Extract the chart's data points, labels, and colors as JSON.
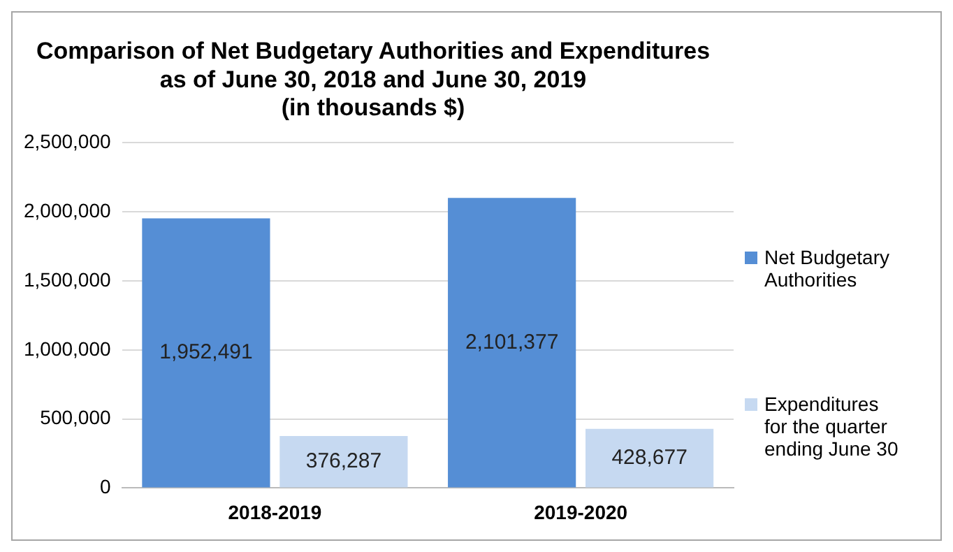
{
  "chart_data": {
    "type": "bar",
    "title": "Comparison of Net Budgetary Authorities and Expenditures\nas of June 30, 2018 and June 30, 2019\n(in thousands $)",
    "categories": [
      "2018-2019",
      "2019-2020"
    ],
    "series": [
      {
        "name": "Net Budgetary Authorities",
        "color": "#558ed5",
        "values": [
          1952491,
          2101377
        ],
        "value_labels": [
          "1,952,491",
          "2,101,377"
        ]
      },
      {
        "name": "Expenditures for the quarter ending June 30",
        "color": "#c6d9f1",
        "values": [
          376287,
          428677
        ],
        "value_labels": [
          "376,287",
          "428,677"
        ]
      }
    ],
    "ylim": [
      0,
      2500000
    ],
    "yticks": [
      {
        "value": 0,
        "label": "0"
      },
      {
        "value": 500000,
        "label": "500,000"
      },
      {
        "value": 1000000,
        "label": "1,000,000"
      },
      {
        "value": 1500000,
        "label": "1,500,000"
      },
      {
        "value": 2000000,
        "label": "2,000,000"
      },
      {
        "value": 2500000,
        "label": "2,500,000"
      }
    ],
    "grid": "y",
    "legend": "right"
  }
}
